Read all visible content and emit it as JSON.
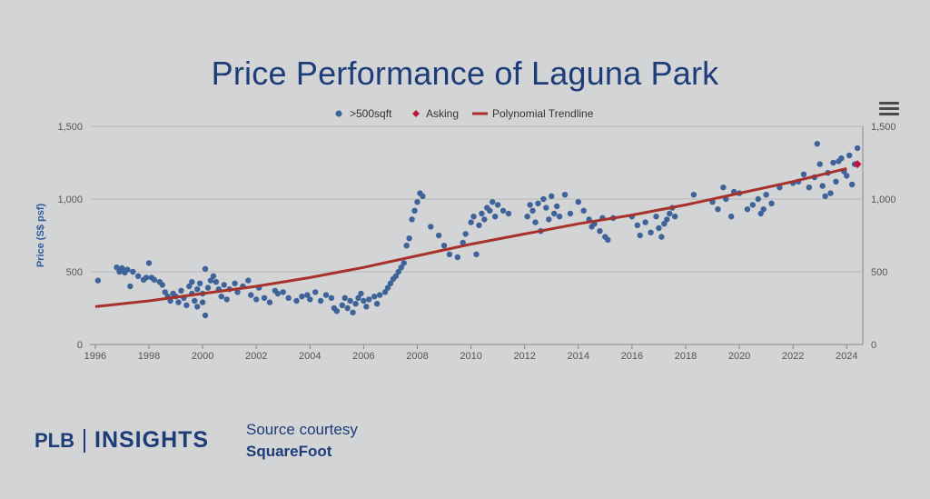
{
  "page": {
    "title": "Price Performance of Laguna Park",
    "brand_left": "PLB",
    "brand_right": "INSIGHTS",
    "source_line1": "Source courtesy",
    "source_line2": "SquareFoot"
  },
  "colors": {
    "background": "#d3d4d6",
    "title": "#1d3c78",
    "dots": "#3e6399",
    "asking": "#c0163c",
    "trend": "#a8312b",
    "grid": "#b7b8ba"
  },
  "icons": {
    "menu": "hamburger-menu-icon"
  },
  "chart_data": {
    "type": "scatter",
    "title": "",
    "xlabel": "",
    "ylabel": "Price (S$ psf)",
    "xlim": [
      1995.8,
      2024.6
    ],
    "ylim": [
      0,
      1500
    ],
    "x_ticks": [
      "1996",
      "1998",
      "2000",
      "2002",
      "2004",
      "2006",
      "2008",
      "2010",
      "2012",
      "2014",
      "2016",
      "2018",
      "2020",
      "2022",
      "2024"
    ],
    "y_ticks_left": [
      "0",
      "500",
      "1,000",
      "1,500"
    ],
    "y_ticks_right": [
      "0",
      "500",
      "1,000",
      "1,500"
    ],
    "grid": true,
    "legend_position": "top-center",
    "legend": [
      ">500sqft",
      "Asking",
      "Polynomial Trendline"
    ],
    "series": [
      {
        "name": ">500sqft",
        "marker": "circle",
        "points": [
          [
            1996.1,
            440
          ],
          [
            1996.8,
            530
          ],
          [
            1996.9,
            500
          ],
          [
            1997.0,
            525
          ],
          [
            1997.1,
            495
          ],
          [
            1997.2,
            515
          ],
          [
            1997.3,
            400
          ],
          [
            1997.4,
            500
          ],
          [
            1997.6,
            470
          ],
          [
            1997.8,
            445
          ],
          [
            1997.9,
            460
          ],
          [
            1998.0,
            560
          ],
          [
            1998.1,
            460
          ],
          [
            1998.2,
            445
          ],
          [
            1998.4,
            430
          ],
          [
            1998.5,
            410
          ],
          [
            1998.6,
            360
          ],
          [
            1998.7,
            330
          ],
          [
            1998.8,
            300
          ],
          [
            1998.9,
            350
          ],
          [
            1999.0,
            330
          ],
          [
            1999.1,
            290
          ],
          [
            1999.2,
            370
          ],
          [
            1999.3,
            320
          ],
          [
            1999.4,
            270
          ],
          [
            1999.5,
            400
          ],
          [
            1999.6,
            430
          ],
          [
            1999.6,
            350
          ],
          [
            1999.7,
            300
          ],
          [
            1999.8,
            260
          ],
          [
            1999.8,
            380
          ],
          [
            1999.9,
            420
          ],
          [
            2000.0,
            350
          ],
          [
            2000.0,
            290
          ],
          [
            2000.1,
            200
          ],
          [
            2000.1,
            520
          ],
          [
            2000.2,
            390
          ],
          [
            2000.3,
            440
          ],
          [
            2000.4,
            470
          ],
          [
            2000.5,
            430
          ],
          [
            2000.6,
            380
          ],
          [
            2000.7,
            330
          ],
          [
            2000.8,
            410
          ],
          [
            2000.9,
            310
          ],
          [
            2001.0,
            380
          ],
          [
            2001.2,
            420
          ],
          [
            2001.3,
            360
          ],
          [
            2001.5,
            400
          ],
          [
            2001.7,
            440
          ],
          [
            2001.8,
            340
          ],
          [
            2002.0,
            310
          ],
          [
            2002.1,
            390
          ],
          [
            2002.3,
            320
          ],
          [
            2002.5,
            290
          ],
          [
            2002.7,
            370
          ],
          [
            2002.8,
            350
          ],
          [
            2003.0,
            360
          ],
          [
            2003.2,
            320
          ],
          [
            2003.5,
            300
          ],
          [
            2003.7,
            330
          ],
          [
            2003.9,
            340
          ],
          [
            2004.0,
            310
          ],
          [
            2004.2,
            360
          ],
          [
            2004.4,
            300
          ],
          [
            2004.6,
            340
          ],
          [
            2004.8,
            320
          ],
          [
            2004.9,
            250
          ],
          [
            2005.0,
            230
          ],
          [
            2005.2,
            270
          ],
          [
            2005.3,
            320
          ],
          [
            2005.4,
            250
          ],
          [
            2005.5,
            300
          ],
          [
            2005.6,
            220
          ],
          [
            2005.7,
            280
          ],
          [
            2005.8,
            320
          ],
          [
            2005.9,
            350
          ],
          [
            2006.0,
            300
          ],
          [
            2006.1,
            260
          ],
          [
            2006.2,
            310
          ],
          [
            2006.4,
            330
          ],
          [
            2006.5,
            280
          ],
          [
            2006.6,
            340
          ],
          [
            2006.8,
            360
          ],
          [
            2006.9,
            390
          ],
          [
            2007.0,
            420
          ],
          [
            2007.1,
            450
          ],
          [
            2007.2,
            470
          ],
          [
            2007.3,
            500
          ],
          [
            2007.4,
            530
          ],
          [
            2007.5,
            560
          ],
          [
            2007.6,
            680
          ],
          [
            2007.7,
            730
          ],
          [
            2007.8,
            860
          ],
          [
            2007.9,
            920
          ],
          [
            2008.0,
            980
          ],
          [
            2008.1,
            1040
          ],
          [
            2008.2,
            1020
          ],
          [
            2008.5,
            810
          ],
          [
            2008.8,
            750
          ],
          [
            2009.0,
            680
          ],
          [
            2009.2,
            620
          ],
          [
            2009.5,
            600
          ],
          [
            2009.7,
            700
          ],
          [
            2009.8,
            760
          ],
          [
            2010.0,
            840
          ],
          [
            2010.1,
            880
          ],
          [
            2010.2,
            620
          ],
          [
            2010.3,
            820
          ],
          [
            2010.4,
            900
          ],
          [
            2010.5,
            860
          ],
          [
            2010.6,
            940
          ],
          [
            2010.7,
            920
          ],
          [
            2010.8,
            980
          ],
          [
            2010.9,
            880
          ],
          [
            2011.0,
            960
          ],
          [
            2011.2,
            920
          ],
          [
            2011.4,
            900
          ],
          [
            2012.1,
            880
          ],
          [
            2012.2,
            960
          ],
          [
            2012.3,
            920
          ],
          [
            2012.4,
            840
          ],
          [
            2012.5,
            970
          ],
          [
            2012.6,
            780
          ],
          [
            2012.7,
            1000
          ],
          [
            2012.8,
            940
          ],
          [
            2012.9,
            860
          ],
          [
            2013.0,
            1020
          ],
          [
            2013.1,
            900
          ],
          [
            2013.2,
            950
          ],
          [
            2013.3,
            880
          ],
          [
            2013.5,
            1030
          ],
          [
            2013.7,
            900
          ],
          [
            2014.0,
            980
          ],
          [
            2014.2,
            920
          ],
          [
            2014.4,
            860
          ],
          [
            2014.5,
            810
          ],
          [
            2014.6,
            830
          ],
          [
            2014.8,
            780
          ],
          [
            2014.9,
            870
          ],
          [
            2015.0,
            740
          ],
          [
            2015.1,
            720
          ],
          [
            2015.3,
            870
          ],
          [
            2016.0,
            880
          ],
          [
            2016.2,
            820
          ],
          [
            2016.3,
            750
          ],
          [
            2016.5,
            840
          ],
          [
            2016.7,
            770
          ],
          [
            2016.9,
            880
          ],
          [
            2017.0,
            800
          ],
          [
            2017.1,
            740
          ],
          [
            2017.2,
            830
          ],
          [
            2017.3,
            860
          ],
          [
            2017.4,
            900
          ],
          [
            2017.5,
            940
          ],
          [
            2017.6,
            880
          ],
          [
            2018.3,
            1030
          ],
          [
            2019.0,
            980
          ],
          [
            2019.2,
            930
          ],
          [
            2019.4,
            1080
          ],
          [
            2019.5,
            1000
          ],
          [
            2019.7,
            880
          ],
          [
            2019.8,
            1050
          ],
          [
            2020.0,
            1040
          ],
          [
            2020.3,
            930
          ],
          [
            2020.5,
            960
          ],
          [
            2020.7,
            1000
          ],
          [
            2020.8,
            900
          ],
          [
            2020.9,
            930
          ],
          [
            2021.0,
            1030
          ],
          [
            2021.2,
            970
          ],
          [
            2021.5,
            1080
          ],
          [
            2022.0,
            1110
          ],
          [
            2022.2,
            1120
          ],
          [
            2022.4,
            1170
          ],
          [
            2022.6,
            1080
          ],
          [
            2022.8,
            1150
          ],
          [
            2022.9,
            1380
          ],
          [
            2023.0,
            1240
          ],
          [
            2023.1,
            1090
          ],
          [
            2023.2,
            1020
          ],
          [
            2023.3,
            1180
          ],
          [
            2023.4,
            1040
          ],
          [
            2023.5,
            1250
          ],
          [
            2023.6,
            1120
          ],
          [
            2023.7,
            1260
          ],
          [
            2023.8,
            1280
          ],
          [
            2023.9,
            1190
          ],
          [
            2024.0,
            1160
          ],
          [
            2024.1,
            1300
          ],
          [
            2024.2,
            1100
          ],
          [
            2024.3,
            1240
          ],
          [
            2024.4,
            1350
          ]
        ]
      },
      {
        "name": "Asking",
        "marker": "diamond",
        "points": [
          [
            2024.4,
            1240
          ]
        ]
      },
      {
        "name": "Polynomial Trendline",
        "marker": "line",
        "points": [
          [
            1996.0,
            260
          ],
          [
            1998.0,
            300
          ],
          [
            2000.0,
            350
          ],
          [
            2002.0,
            400
          ],
          [
            2004.0,
            460
          ],
          [
            2006.0,
            530
          ],
          [
            2008.0,
            610
          ],
          [
            2010.0,
            690
          ],
          [
            2012.0,
            760
          ],
          [
            2014.0,
            830
          ],
          [
            2016.0,
            890
          ],
          [
            2018.0,
            960
          ],
          [
            2020.0,
            1040
          ],
          [
            2022.0,
            1120
          ],
          [
            2024.0,
            1210
          ]
        ]
      }
    ]
  }
}
